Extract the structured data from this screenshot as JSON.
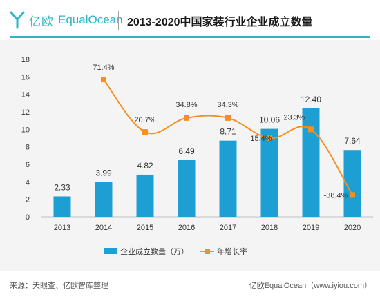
{
  "brand": {
    "name_cn": "亿欧",
    "name_en": "EqualOcean",
    "color": "#2fb3c8"
  },
  "header": {
    "title": "2013-2020中国家装行业企业成立数量"
  },
  "chart_data": {
    "type": "bar+line",
    "categories": [
      "2013",
      "2014",
      "2015",
      "2016",
      "2017",
      "2018",
      "2019",
      "2020"
    ],
    "series": [
      {
        "name": "企业成立数量（万）",
        "type": "bar",
        "color": "#1e9fd4",
        "values": [
          2.33,
          3.99,
          4.82,
          6.49,
          8.71,
          10.06,
          12.4,
          7.64
        ],
        "labels": [
          "2.33",
          "3.99",
          "4.82",
          "6.49",
          "8.71",
          "10.06",
          "12.40",
          "7.64"
        ]
      },
      {
        "name": "年增长率",
        "type": "line",
        "color": "#f5901e",
        "values": [
          null,
          15.7,
          9.7,
          11.3,
          11.3,
          9.0,
          10.0,
          2.5
        ],
        "labels": [
          "",
          "71.4%",
          "20.7%",
          "34.8%",
          "34.3%",
          "15.4%",
          "23.3%",
          "-38.4%"
        ]
      }
    ],
    "yticks": [
      "0",
      "2",
      "4",
      "6",
      "8",
      "10",
      "12",
      "14",
      "16",
      "18"
    ],
    "ylim": [
      0,
      18
    ],
    "grid": false,
    "legend": "bottom-center"
  },
  "footer": {
    "source": "来源：天眼查、亿欧智库整理",
    "credit": "亿欧EqualOcean（www.iyiou.com）"
  }
}
